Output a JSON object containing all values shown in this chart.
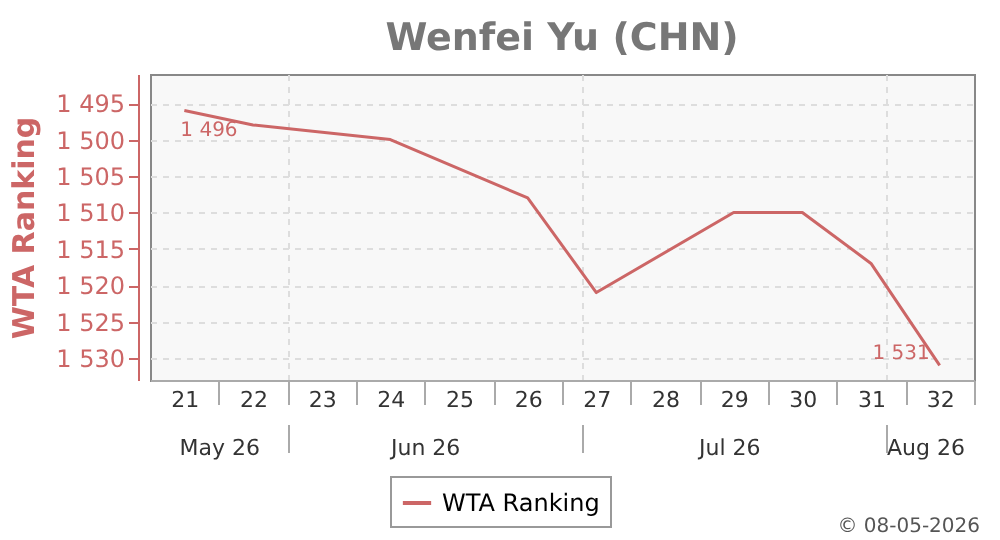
{
  "chart_data": {
    "type": "line",
    "title": "Wenfei Yu (CHN)",
    "ylabel": "WTA Ranking",
    "x": [
      21,
      22,
      24,
      26,
      27,
      29,
      30,
      31,
      32
    ],
    "series": [
      {
        "name": "WTA Ranking",
        "color": "#cc6666",
        "values": [
          1496,
          1498,
          1500,
          1508,
          1521,
          1510,
          1510,
          1517,
          1531
        ],
        "value_labels": [
          "1 496",
          null,
          null,
          null,
          null,
          null,
          null,
          null,
          "1 531"
        ]
      }
    ],
    "xlim": [
      20.5,
      32.5
    ],
    "xticks": [
      21,
      22,
      23,
      24,
      25,
      26,
      27,
      28,
      29,
      30,
      31,
      32
    ],
    "x2lim": [
      "2026-05-18",
      "2026-08-10"
    ],
    "x2ticks": [
      {
        "value": "2026-05-25",
        "label": "May 26"
      },
      {
        "value": "2026-06-01",
        "label": null
      },
      {
        "value": "2026-06-15",
        "label": "Jun 26"
      },
      {
        "value": "2026-07-01",
        "label": null
      },
      {
        "value": "2026-07-16",
        "label": "Jul 26"
      },
      {
        "value": "2026-08-01",
        "label": null
      },
      {
        "value": "2026-08-05",
        "label": "Aug 26"
      }
    ],
    "ylim": [
      1533,
      1491
    ],
    "yticks": [
      {
        "value": 1495,
        "label": "1 495"
      },
      {
        "value": 1500,
        "label": "1 500"
      },
      {
        "value": 1505,
        "label": "1 505"
      },
      {
        "value": 1510,
        "label": "1 510"
      },
      {
        "value": 1515,
        "label": "1 515"
      },
      {
        "value": 1520,
        "label": "1 520"
      },
      {
        "value": 1525,
        "label": "1 525"
      },
      {
        "value": 1530,
        "label": "1 530"
      }
    ],
    "grid": true,
    "legend": "bottom",
    "marker": "none",
    "line_style": "solid",
    "annotations": [
      "© 08-05-2026"
    ]
  }
}
